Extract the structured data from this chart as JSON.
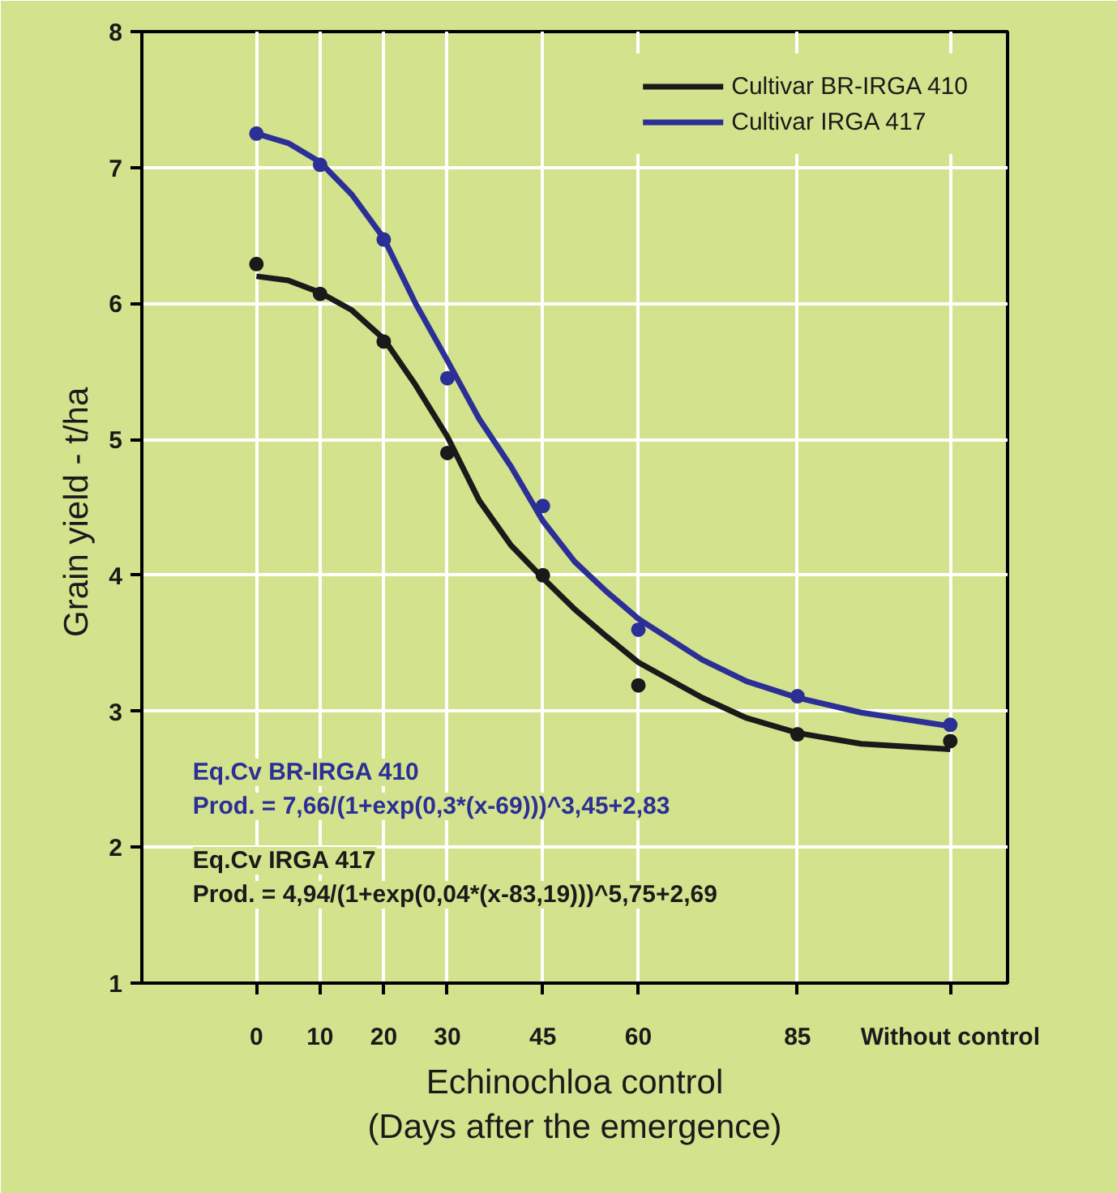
{
  "chart_data": {
    "type": "scatter",
    "xlabel": "Echinochloa control\n(Days after the emergence)",
    "ylabel": "Grain yield  - t/ha",
    "xlim": [
      -18,
      118
    ],
    "ylim": [
      1,
      8
    ],
    "xticks": [
      0,
      10,
      20,
      30,
      45,
      60,
      85,
      {
        "value": 109,
        "label": "Without control"
      }
    ],
    "yticks": [
      1,
      2,
      3,
      4,
      5,
      6,
      7,
      8
    ],
    "grid": true,
    "legend": "top right",
    "marker": "circle",
    "series": [
      {
        "type": "line",
        "name": "Cultivar BR-IRGA 410",
        "color": "#1a1a1a",
        "line_style": "solid",
        "marker": "none",
        "x": [
          0,
          5,
          10,
          15,
          20,
          25,
          30,
          35,
          40,
          45,
          50,
          55,
          60,
          70,
          77,
          85,
          95,
          109
        ],
        "values": [
          6.2,
          6.17,
          6.08,
          5.95,
          5.74,
          5.4,
          5.02,
          4.55,
          4.22,
          3.98,
          3.75,
          3.55,
          3.36,
          3.1,
          2.95,
          2.84,
          2.76,
          2.72
        ]
      },
      {
        "type": "line",
        "name": "Cultivar IRGA 417",
        "color": "#2b2f96",
        "line_style": "solid",
        "marker": "none",
        "x": [
          0,
          5,
          10,
          15,
          20,
          25,
          30,
          35,
          40,
          45,
          50,
          55,
          60,
          70,
          77,
          85,
          95,
          109
        ],
        "values": [
          7.25,
          7.18,
          7.04,
          6.8,
          6.48,
          6.0,
          5.58,
          5.15,
          4.8,
          4.4,
          4.1,
          3.88,
          3.68,
          3.38,
          3.22,
          3.1,
          2.99,
          2.89
        ]
      },
      {
        "color": "#1a1a1a",
        "x": [
          0,
          10,
          20,
          30,
          45,
          60,
          85,
          109
        ],
        "values": [
          6.29,
          6.07,
          5.72,
          4.9,
          4.0,
          3.19,
          2.83,
          2.78
        ]
      },
      {
        "color": "#2b2f96",
        "x": [
          0,
          10,
          20,
          30,
          45,
          60,
          85,
          109
        ],
        "values": [
          7.25,
          7.02,
          6.47,
          5.45,
          4.51,
          3.6,
          3.11,
          2.9
        ]
      }
    ],
    "annotations": [
      "Eq.Cv BR-IRGA 410",
      "Prod. = 7,66/(1+exp(0,3*(x-69)))^3,45+2,83",
      "Eq.Cv IRGA 417",
      "Prod. = 4,94/(1+exp(0,04*(x-83,19)))^5,75+2,69"
    ]
  }
}
